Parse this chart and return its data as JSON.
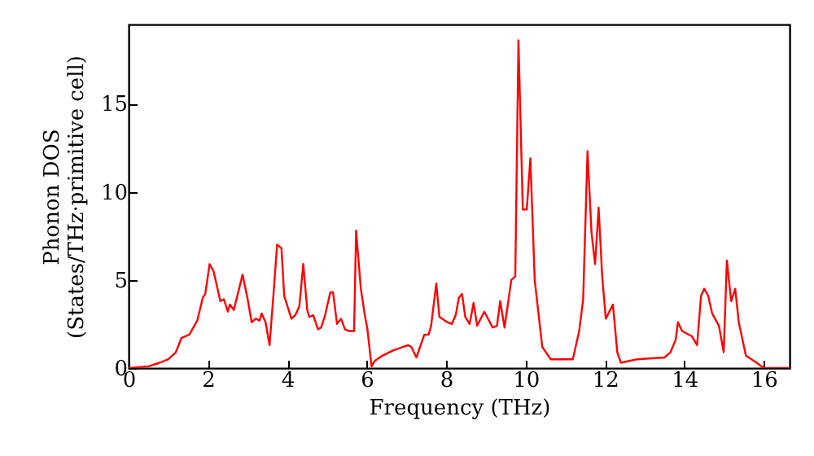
{
  "chart_data": {
    "type": "line",
    "xlabel": "Frequency (THz)",
    "ylabel": "Phonon DOS\n(States/THz·primitive cell)",
    "x": [
      0,
      0.5,
      0.78,
      1.0,
      1.19,
      1.33,
      1.53,
      1.73,
      1.87,
      1.93,
      2.04,
      2.14,
      2.31,
      2.4,
      2.5,
      2.55,
      2.65,
      2.75,
      2.87,
      3.0,
      3.1,
      3.2,
      3.3,
      3.35,
      3.45,
      3.55,
      3.65,
      3.74,
      3.85,
      3.92,
      4.1,
      4.2,
      4.3,
      4.4,
      4.5,
      4.55,
      4.65,
      4.77,
      4.85,
      4.95,
      5.08,
      5.15,
      5.25,
      5.35,
      5.45,
      5.55,
      5.68,
      5.73,
      5.85,
      5.95,
      6.01,
      6.12,
      6.2,
      6.39,
      6.66,
      7.04,
      7.12,
      7.25,
      7.45,
      7.56,
      7.62,
      7.75,
      7.83,
      8.03,
      8.14,
      8.24,
      8.32,
      8.4,
      8.48,
      8.59,
      8.69,
      8.78,
      8.96,
      9.17,
      9.28,
      9.36,
      9.47,
      9.64,
      9.74,
      9.82,
      9.93,
      10.03,
      10.12,
      10.23,
      10.42,
      10.63,
      11.19,
      11.35,
      11.45,
      11.56,
      11.66,
      11.75,
      11.84,
      11.93,
      12.02,
      12.2,
      12.31,
      12.4,
      12.81,
      13.5,
      13.65,
      13.78,
      13.84,
      13.94,
      14.19,
      14.32,
      14.42,
      14.5,
      14.6,
      14.7,
      14.87,
      14.99,
      15.07,
      15.18,
      15.28,
      15.37,
      15.55,
      15.82,
      16.0,
      16.65
    ],
    "series": [
      {
        "color": "#ff0000",
        "values": [
          0,
          0.1,
          0.3,
          0.5,
          0.9,
          1.7,
          1.9,
          2.7,
          4.0,
          4.2,
          5.9,
          5.5,
          3.8,
          3.9,
          3.2,
          3.6,
          3.3,
          4.2,
          5.3,
          3.9,
          2.6,
          2.8,
          2.7,
          3.1,
          2.6,
          1.3,
          4.2,
          7.0,
          6.8,
          4.1,
          2.8,
          3.0,
          3.5,
          5.9,
          3.3,
          2.9,
          3.0,
          2.2,
          2.3,
          3.0,
          4.3,
          4.3,
          2.5,
          2.8,
          2.2,
          2.1,
          2.1,
          7.8,
          4.5,
          3.0,
          2.3,
          0.1,
          0.4,
          0.7,
          1.0,
          1.3,
          1.2,
          0.6,
          1.9,
          1.9,
          2.4,
          4.8,
          2.9,
          2.6,
          2.5,
          3.0,
          4.0,
          4.2,
          2.9,
          2.5,
          3.7,
          2.4,
          3.2,
          2.3,
          2.4,
          3.8,
          2.3,
          5.0,
          5.2,
          18.6,
          9.0,
          9.0,
          11.9,
          5.0,
          1.2,
          0.5,
          0.5,
          2.1,
          3.9,
          12.3,
          7.7,
          5.9,
          9.1,
          5.2,
          2.8,
          3.6,
          0.9,
          0.3,
          0.5,
          0.6,
          0.9,
          1.6,
          2.6,
          2.1,
          1.8,
          1.3,
          4.1,
          4.5,
          4.1,
          3.1,
          2.4,
          0.9,
          6.1,
          3.8,
          4.5,
          2.6,
          0.7,
          0.3,
          0.0,
          0.0
        ]
      }
    ],
    "xlim": [
      0,
      16.65
    ],
    "ylim": [
      0,
      19.5
    ],
    "xticks": [
      0,
      2,
      4,
      6,
      8,
      10,
      12,
      14,
      16
    ],
    "yticks": [
      0,
      5,
      10,
      15
    ],
    "grid": false,
    "marker": "none",
    "line_style": "solid"
  }
}
